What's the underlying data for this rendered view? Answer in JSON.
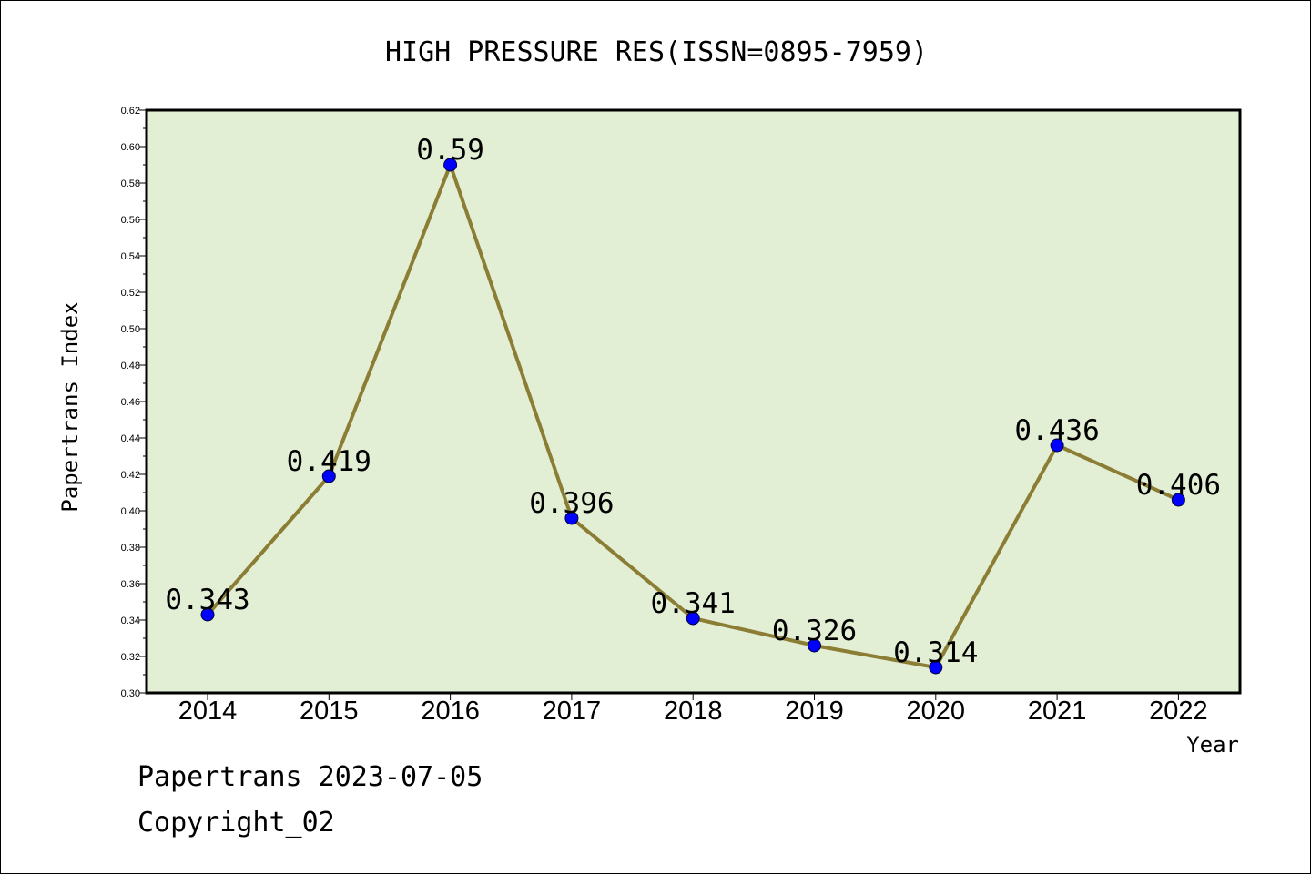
{
  "chart_data": {
    "type": "line",
    "title": "HIGH PRESSURE RES(ISSN=0895-7959)",
    "xlabel": "Year",
    "ylabel": "Papertrans Index",
    "categories": [
      "2014",
      "2015",
      "2016",
      "2017",
      "2018",
      "2019",
      "2020",
      "2021",
      "2022"
    ],
    "values": [
      0.343,
      0.419,
      0.59,
      0.396,
      0.341,
      0.326,
      0.314,
      0.436,
      0.406
    ],
    "data_labels": [
      "0.343",
      "0.419",
      "0.59",
      "0.396",
      "0.341",
      "0.326",
      "0.314",
      "0.436",
      "0.406"
    ],
    "ylim": [
      0.3,
      0.62
    ],
    "yticks": [
      "0.30",
      "0.32",
      "0.34",
      "0.36",
      "0.38",
      "0.40",
      "0.42",
      "0.44",
      "0.46",
      "0.48",
      "0.50",
      "0.52",
      "0.54",
      "0.56",
      "0.58",
      "0.60",
      "0.62"
    ],
    "grid": false,
    "colors": {
      "plot_background": "#e2efd5",
      "line": "#8c7d35",
      "marker": "#0000ff"
    }
  },
  "footer": {
    "date_line": "Papertrans 2023-07-05",
    "copyright": "Copyright_02"
  }
}
